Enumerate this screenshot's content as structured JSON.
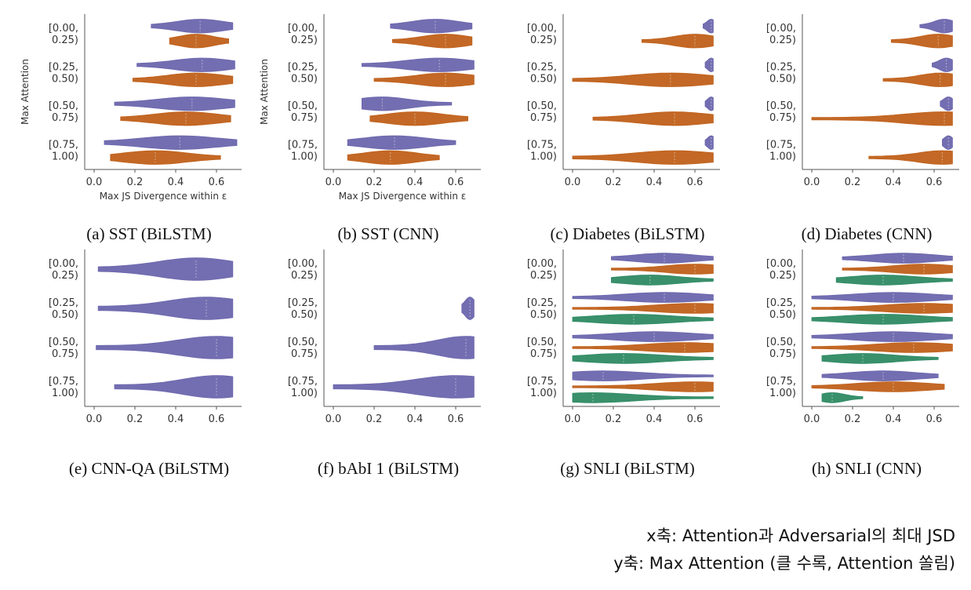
{
  "colors": {
    "attention": "#6b66ad",
    "adversarial": "#c0601a",
    "third": "#2e8a63"
  },
  "chart_data": [
    {
      "type": "violin",
      "caption": "(a) SST (BiLSTM)",
      "xlabel": "Max JS Divergence within ε",
      "ylabel": "Max Attention",
      "xlim": [
        0,
        0.7
      ],
      "xticks": [
        "0.0",
        "0.2",
        "0.4",
        "0.6"
      ],
      "categories": [
        "[0.00,\n0.25)",
        "[0.25,\n0.50)",
        "[0.50,\n0.75)",
        "[0.75,\n1.00)"
      ],
      "series": [
        {
          "values": [
            [
              0.28,
              0.52,
              0.68
            ],
            [
              0.21,
              0.53,
              0.69
            ],
            [
              0.1,
              0.48,
              0.69
            ],
            [
              0.05,
              0.42,
              0.7
            ]
          ]
        },
        {
          "values": [
            [
              0.37,
              0.5,
              0.66
            ],
            [
              0.19,
              0.5,
              0.68
            ],
            [
              0.13,
              0.45,
              0.67
            ],
            [
              0.08,
              0.3,
              0.62
            ]
          ]
        }
      ]
    },
    {
      "type": "violin",
      "caption": "(b) SST (CNN)",
      "xlabel": "Max JS Divergence within ε",
      "ylabel": "Max Attention",
      "xlim": [
        0,
        0.7
      ],
      "xticks": [
        "0.0",
        "0.2",
        "0.4",
        "0.6"
      ],
      "categories": [
        "[0.00,\n0.25)",
        "[0.25,\n0.50)",
        "[0.50,\n0.75)",
        "[0.75,\n1.00)"
      ],
      "series": [
        {
          "values": [
            [
              0.28,
              0.5,
              0.68
            ],
            [
              0.14,
              0.52,
              0.69
            ],
            [
              0.14,
              0.24,
              0.58
            ],
            [
              0.07,
              0.3,
              0.6
            ]
          ]
        },
        {
          "values": [
            [
              0.29,
              0.55,
              0.68
            ],
            [
              0.2,
              0.55,
              0.69
            ],
            [
              0.18,
              0.4,
              0.66
            ],
            [
              0.07,
              0.28,
              0.52
            ]
          ]
        }
      ]
    },
    {
      "type": "violin",
      "caption": "(c) Diabetes (BiLSTM)",
      "xlabel": "",
      "ylabel": "",
      "xlim": [
        0,
        0.7
      ],
      "xticks": [
        "0.0",
        "0.2",
        "0.4",
        "0.6"
      ],
      "categories": [
        "[0.00,\n0.25)",
        "[0.25,\n0.50)",
        "[0.50,\n0.75)",
        "[0.75,\n1.00)"
      ],
      "series": [
        {
          "values": [
            [
              0.64,
              0.68,
              0.69
            ],
            [
              0.65,
              0.68,
              0.69
            ],
            [
              0.65,
              0.68,
              0.69
            ],
            [
              0.65,
              0.68,
              0.69
            ]
          ]
        },
        {
          "values": [
            [
              0.34,
              0.6,
              0.69
            ],
            [
              0.0,
              0.48,
              0.69
            ],
            [
              0.1,
              0.5,
              0.69
            ],
            [
              0.0,
              0.5,
              0.69
            ]
          ]
        }
      ]
    },
    {
      "type": "violin",
      "caption": "(d) Diabetes (CNN)",
      "xlabel": "",
      "ylabel": "",
      "xlim": [
        0,
        0.7
      ],
      "xticks": [
        "0.0",
        "0.2",
        "0.4",
        "0.6"
      ],
      "categories": [
        "[0.00,\n0.25)",
        "[0.25,\n0.50)",
        "[0.50,\n0.75)",
        "[0.75,\n1.00)"
      ],
      "series": [
        {
          "values": [
            [
              0.53,
              0.65,
              0.69
            ],
            [
              0.59,
              0.66,
              0.69
            ],
            [
              0.63,
              0.67,
              0.69
            ],
            [
              0.64,
              0.67,
              0.69
            ]
          ]
        },
        {
          "values": [
            [
              0.39,
              0.62,
              0.69
            ],
            [
              0.35,
              0.63,
              0.69
            ],
            [
              0.0,
              0.65,
              0.69
            ],
            [
              0.28,
              0.64,
              0.69
            ]
          ]
        }
      ]
    },
    {
      "type": "violin",
      "caption": "(e) CNN-QA (BiLSTM)",
      "xlabel": "",
      "ylabel": "",
      "xlim": [
        0,
        0.7
      ],
      "xticks": [
        "0.0",
        "0.2",
        "0.4",
        "0.6"
      ],
      "categories": [
        "[0.00,\n0.25)",
        "[0.25,\n0.50)",
        "[0.50,\n0.75)",
        "[0.75,\n1.00)"
      ],
      "series": [
        {
          "values": [
            [
              0.02,
              0.5,
              0.68
            ],
            [
              0.02,
              0.55,
              0.68
            ],
            [
              0.01,
              0.6,
              0.68
            ],
            [
              0.1,
              0.6,
              0.68
            ]
          ]
        }
      ]
    },
    {
      "type": "violin",
      "caption": "(f) bAbI 1 (BiLSTM)",
      "xlabel": "",
      "ylabel": "",
      "xlim": [
        0,
        0.7
      ],
      "xticks": [
        "0.0",
        "0.2",
        "0.4",
        "0.6"
      ],
      "categories": [
        "[0.00,\n0.25)",
        "[0.25,\n0.50)",
        "[0.50,\n0.75)",
        "[0.75,\n1.00)"
      ],
      "series": [
        {
          "values": [
            null,
            [
              0.63,
              0.67,
              0.69
            ],
            [
              0.2,
              0.65,
              0.69
            ],
            [
              0.0,
              0.6,
              0.69
            ]
          ]
        }
      ]
    },
    {
      "type": "violin",
      "caption": "(g) SNLI (BiLSTM)",
      "xlabel": "",
      "ylabel": "",
      "xlim": [
        0,
        0.7
      ],
      "xticks": [
        "0.0",
        "0.2",
        "0.4",
        "0.6"
      ],
      "categories": [
        "[0.00,\n0.25)",
        "[0.25,\n0.50)",
        "[0.50,\n0.75)",
        "[0.75,\n1.00)"
      ],
      "series": [
        {
          "values": [
            [
              0.19,
              0.45,
              0.69
            ],
            [
              0.0,
              0.45,
              0.69
            ],
            [
              0.0,
              0.4,
              0.69
            ],
            [
              0.0,
              0.15,
              0.69
            ]
          ]
        },
        {
          "values": [
            [
              0.19,
              0.6,
              0.69
            ],
            [
              0.0,
              0.6,
              0.69
            ],
            [
              0.0,
              0.55,
              0.69
            ],
            [
              0.0,
              0.6,
              0.69
            ]
          ]
        },
        {
          "values": [
            [
              0.19,
              0.38,
              0.69
            ],
            [
              0.0,
              0.3,
              0.69
            ],
            [
              0.0,
              0.25,
              0.69
            ],
            [
              0.0,
              0.1,
              0.69
            ]
          ]
        }
      ]
    },
    {
      "type": "violin",
      "caption": "(h) SNLI (CNN)",
      "xlabel": "",
      "ylabel": "",
      "xlim": [
        0,
        0.7
      ],
      "xticks": [
        "0.0",
        "0.2",
        "0.4",
        "0.6"
      ],
      "categories": [
        "[0.00,\n0.25)",
        "[0.25,\n0.50)",
        "[0.50,\n0.75)",
        "[0.75,\n1.00)"
      ],
      "series": [
        {
          "values": [
            [
              0.15,
              0.45,
              0.69
            ],
            [
              0.0,
              0.4,
              0.69
            ],
            [
              0.0,
              0.4,
              0.69
            ],
            [
              0.05,
              0.35,
              0.62
            ]
          ]
        },
        {
          "values": [
            [
              0.15,
              0.55,
              0.69
            ],
            [
              0.0,
              0.55,
              0.69
            ],
            [
              0.0,
              0.5,
              0.69
            ],
            [
              0.0,
              0.4,
              0.65
            ]
          ]
        },
        {
          "values": [
            [
              0.12,
              0.35,
              0.69
            ],
            [
              0.0,
              0.35,
              0.69
            ],
            [
              0.05,
              0.25,
              0.62
            ],
            [
              0.05,
              0.1,
              0.25
            ]
          ]
        }
      ]
    }
  ],
  "notes": {
    "line1": "x축: Attention과 Adversarial의 최대 JSD",
    "line2": "y축: Max Attention (클 수록, Attention 쏠림)"
  }
}
